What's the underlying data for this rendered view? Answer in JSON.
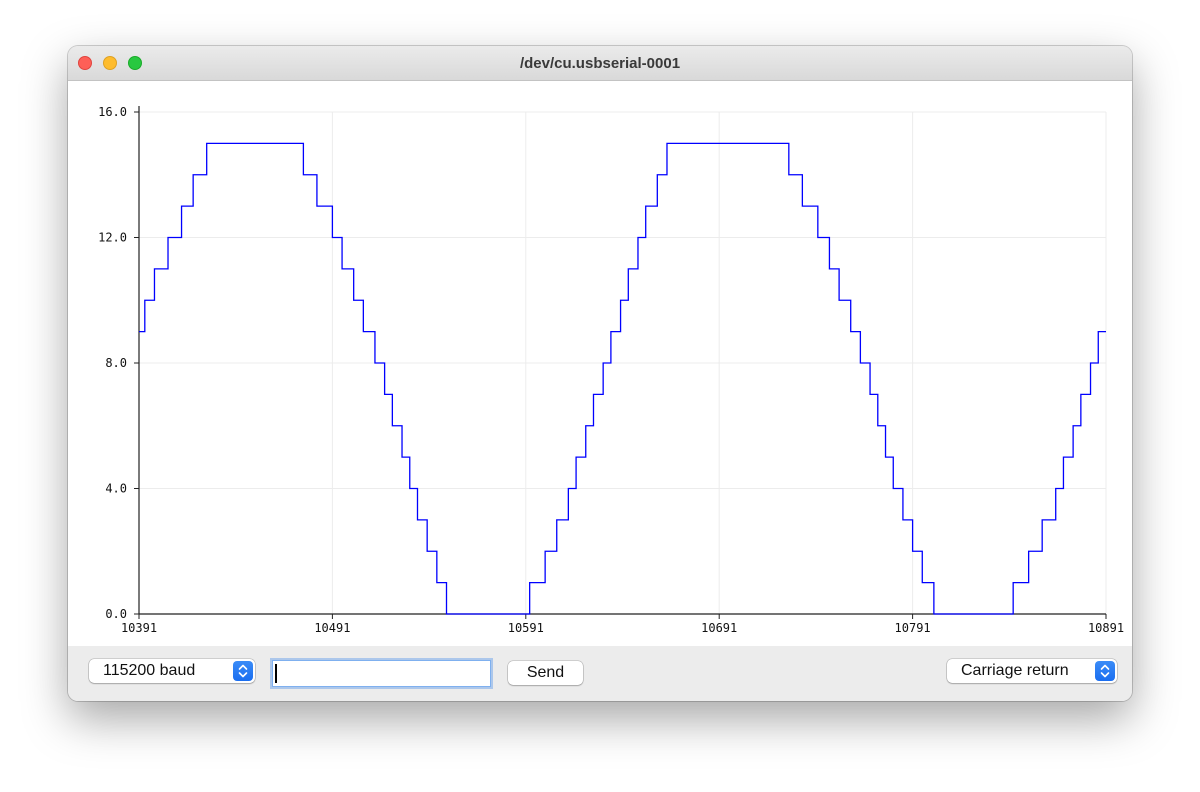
{
  "window": {
    "title": "/dev/cu.usbserial-0001"
  },
  "toolbar": {
    "baud_select_value": "115200 baud",
    "message_input_value": "",
    "send_label": "Send",
    "line_ending_value": "Carriage return"
  },
  "icons": {
    "close": "close-icon",
    "minimize": "minimize-icon",
    "maximize": "maximize-icon",
    "select_arrows": "chevron-up-down-icon"
  },
  "colors": {
    "series": "#0000ff",
    "close": "#fe5f57",
    "minimize": "#febc2e",
    "maximize": "#28c840",
    "accent": "#1a6ef0"
  },
  "chart_data": {
    "type": "line",
    "step": true,
    "xlim": [
      10391,
      10891
    ],
    "ylim": [
      0,
      16
    ],
    "x_ticks": [
      "10391",
      "10491",
      "10591",
      "10691",
      "10791",
      "10891"
    ],
    "y_ticks": [
      "0.0",
      "4.0",
      "8.0",
      "12.0",
      "16.0"
    ],
    "grid": true,
    "series": [
      {
        "x": [
          10391,
          10394,
          10399,
          10406,
          10413,
          10419,
          10426,
          10431,
          10436,
          10476,
          10483,
          10491,
          10496,
          10502,
          10507,
          10513,
          10518,
          10522,
          10527,
          10531,
          10535,
          10540,
          10545,
          10550,
          10557,
          10564,
          10571,
          10591,
          10593,
          10601,
          10607,
          10613,
          10617,
          10622,
          10626,
          10631,
          10635,
          10640,
          10644,
          10649,
          10653,
          10659,
          10664,
          10671,
          10678,
          10686,
          10727,
          10734,
          10742,
          10748,
          10753,
          10759,
          10764,
          10769,
          10773,
          10777,
          10781,
          10786,
          10791,
          10796,
          10802,
          10810,
          10817,
          10824,
          10843,
          10851,
          10858,
          10865,
          10869,
          10874,
          10878,
          10883,
          10887,
          10891
        ],
        "y": [
          9,
          10,
          11,
          12,
          13,
          14,
          15,
          15,
          15,
          14,
          13,
          12,
          11,
          10,
          9,
          8,
          7,
          6,
          5,
          4,
          3,
          2,
          1,
          0,
          0,
          0,
          0,
          0,
          1,
          2,
          3,
          4,
          5,
          6,
          7,
          8,
          9,
          10,
          11,
          12,
          13,
          14,
          15,
          15,
          15,
          15,
          14,
          13,
          12,
          11,
          10,
          9,
          8,
          7,
          6,
          5,
          4,
          3,
          2,
          1,
          0,
          0,
          0,
          0,
          1,
          2,
          3,
          4,
          5,
          6,
          7,
          8,
          9,
          9
        ]
      }
    ]
  }
}
